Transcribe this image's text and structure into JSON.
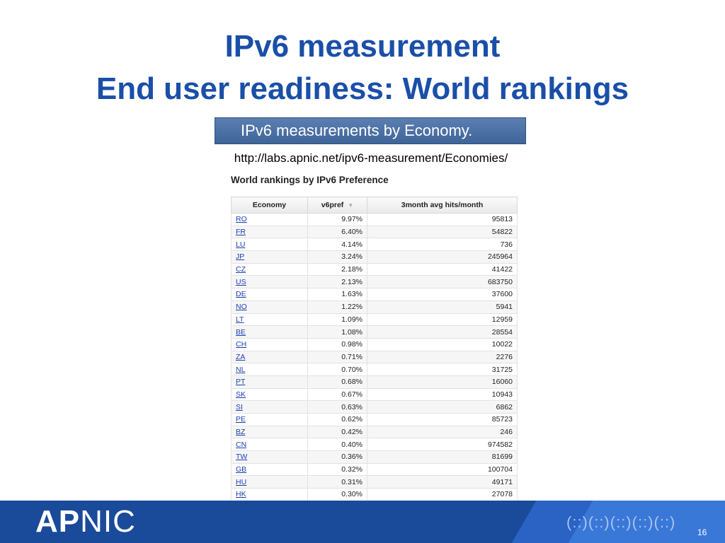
{
  "slide": {
    "title_line1": "IPv6 measurement",
    "title_line2": "End user readiness: World rankings",
    "banner": "IPv6 measurements by Economy.",
    "url": "http://labs.apnic.net/ipv6-measurement/Economies/",
    "subtitle": "World rankings by IPv6 Preference",
    "page_number": "16",
    "logo_bold": "AP",
    "logo_light": "NIC",
    "footer_pattern": "(::)(::)(::)(::)(::)"
  },
  "table": {
    "headers": [
      "Economy",
      "v6pref",
      "3month avg hits/month"
    ],
    "sort_indicator": "▼",
    "rows": [
      [
        "RO",
        "9.97%",
        "95813"
      ],
      [
        "FR",
        "6.40%",
        "54822"
      ],
      [
        "LU",
        "4.14%",
        "736"
      ],
      [
        "JP",
        "3.24%",
        "245964"
      ],
      [
        "CZ",
        "2.18%",
        "41422"
      ],
      [
        "US",
        "2.13%",
        "683750"
      ],
      [
        "DE",
        "1.63%",
        "37600"
      ],
      [
        "NO",
        "1.22%",
        "5941"
      ],
      [
        "LT",
        "1.09%",
        "12959"
      ],
      [
        "BE",
        "1.08%",
        "28554"
      ],
      [
        "CH",
        "0.98%",
        "10022"
      ],
      [
        "ZA",
        "0.71%",
        "2276"
      ],
      [
        "NL",
        "0.70%",
        "31725"
      ],
      [
        "PT",
        "0.68%",
        "16060"
      ],
      [
        "SK",
        "0.67%",
        "10943"
      ],
      [
        "SI",
        "0.63%",
        "6862"
      ],
      [
        "PE",
        "0.62%",
        "85723"
      ],
      [
        "BZ",
        "0.42%",
        "246"
      ],
      [
        "CN",
        "0.40%",
        "974582"
      ],
      [
        "TW",
        "0.36%",
        "81699"
      ],
      [
        "GB",
        "0.32%",
        "100704"
      ],
      [
        "HU",
        "0.31%",
        "49171"
      ],
      [
        "HK",
        "0.30%",
        "27078"
      ]
    ]
  },
  "colors": {
    "title": "#1a4fa8",
    "footer": "#1a4a9a",
    "link": "#1a3fb0"
  }
}
